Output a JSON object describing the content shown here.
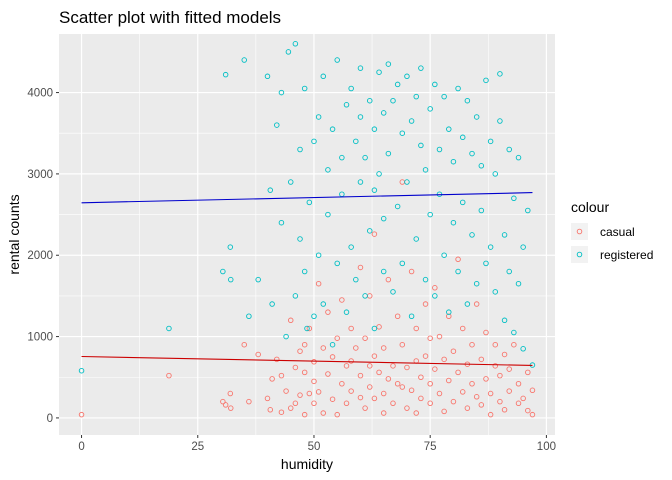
{
  "chart_data": {
    "type": "scatter",
    "title": "Scatter plot with fitted models",
    "xlabel": "humidity",
    "ylabel": "rental counts",
    "xlim": [
      -4.85,
      101.85
    ],
    "ylim": [
      -210,
      4720
    ],
    "x_ticks": [
      0,
      25,
      50,
      75,
      100
    ],
    "y_ticks": [
      0,
      1000,
      2000,
      3000,
      4000
    ],
    "x_tick_labels": [
      "0",
      "25",
      "50",
      "75",
      "100"
    ],
    "y_tick_labels": [
      "0",
      "1000",
      "2000",
      "3000",
      "4000"
    ],
    "grid": true,
    "legend_position": "right",
    "legend_title": "colour",
    "series": [
      {
        "name": "casual",
        "color": "#F8766D",
        "points": [
          [
            0,
            40
          ],
          [
            18.8,
            520
          ],
          [
            30.4,
            200
          ],
          [
            31,
            160
          ],
          [
            32,
            300
          ],
          [
            32.1,
            120
          ],
          [
            35,
            900
          ],
          [
            36,
            200
          ],
          [
            38,
            780
          ],
          [
            40,
            240
          ],
          [
            40.6,
            100
          ],
          [
            41,
            480
          ],
          [
            42,
            720
          ],
          [
            43,
            520
          ],
          [
            43,
            70
          ],
          [
            44,
            330
          ],
          [
            45,
            120
          ],
          [
            45,
            1200
          ],
          [
            46,
            620
          ],
          [
            46,
            180
          ],
          [
            47,
            820
          ],
          [
            47,
            280
          ],
          [
            48,
            900
          ],
          [
            48,
            40
          ],
          [
            48,
            560
          ],
          [
            49,
            300
          ],
          [
            49,
            1100
          ],
          [
            50,
            450
          ],
          [
            50,
            180
          ],
          [
            50,
            690
          ],
          [
            51,
            1650
          ],
          [
            51,
            320
          ],
          [
            52,
            860
          ],
          [
            52,
            60
          ],
          [
            53,
            540
          ],
          [
            53,
            1300
          ],
          [
            54,
            230
          ],
          [
            54,
            750
          ],
          [
            55,
            40
          ],
          [
            55,
            980
          ],
          [
            56,
            420
          ],
          [
            56,
            1450
          ],
          [
            57,
            640
          ],
          [
            57,
            180
          ],
          [
            58,
            1100
          ],
          [
            58,
            330
          ],
          [
            58,
            700
          ],
          [
            59,
            860
          ],
          [
            60,
            250
          ],
          [
            60,
            1850
          ],
          [
            60,
            520
          ],
          [
            61,
            120
          ],
          [
            61,
            980
          ],
          [
            62,
            640
          ],
          [
            62,
            380
          ],
          [
            62,
            1500
          ],
          [
            63,
            760
          ],
          [
            63,
            240
          ],
          [
            63,
            2260
          ],
          [
            64,
            560
          ],
          [
            64,
            1120
          ],
          [
            65,
            300
          ],
          [
            65,
            860
          ],
          [
            65,
            60
          ],
          [
            66,
            1700
          ],
          [
            66,
            480
          ],
          [
            67,
            640
          ],
          [
            67,
            180
          ],
          [
            68,
            1250
          ],
          [
            68,
            420
          ],
          [
            69,
            900
          ],
          [
            69,
            380
          ],
          [
            69,
            2900
          ],
          [
            70,
            620
          ],
          [
            70,
            120
          ],
          [
            71,
            1800
          ],
          [
            71,
            340
          ],
          [
            72,
            700
          ],
          [
            72,
            1100
          ],
          [
            72,
            60
          ],
          [
            73,
            500
          ],
          [
            73,
            240
          ],
          [
            74,
            1400
          ],
          [
            74,
            760
          ],
          [
            75,
            420
          ],
          [
            75,
            980
          ],
          [
            75,
            180
          ],
          [
            76,
            1600
          ],
          [
            76,
            600
          ],
          [
            77,
            300
          ],
          [
            77,
            1000
          ],
          [
            78,
            720
          ],
          [
            78,
            80
          ],
          [
            79,
            460
          ],
          [
            79,
            1250
          ],
          [
            80,
            200
          ],
          [
            80,
            820
          ],
          [
            81,
            1950
          ],
          [
            81,
            560
          ],
          [
            82,
            320
          ],
          [
            82,
            1100
          ],
          [
            83,
            660
          ],
          [
            83,
            120
          ],
          [
            84,
            900
          ],
          [
            84,
            420
          ],
          [
            85,
            260
          ],
          [
            85,
            1400
          ],
          [
            86,
            720
          ],
          [
            86,
            160
          ],
          [
            87,
            480
          ],
          [
            87,
            1050
          ],
          [
            88,
            300
          ],
          [
            88,
            40
          ],
          [
            89,
            640
          ],
          [
            89,
            900
          ],
          [
            90,
            200
          ],
          [
            90,
            520
          ],
          [
            91,
            780
          ],
          [
            91,
            100
          ],
          [
            92,
            330
          ],
          [
            92,
            600
          ],
          [
            93,
            900
          ],
          [
            94,
            180
          ],
          [
            94,
            420
          ],
          [
            95,
            240
          ],
          [
            96,
            90
          ],
          [
            96,
            560
          ],
          [
            97,
            40
          ],
          [
            97,
            340
          ]
        ]
      },
      {
        "name": "registered",
        "color": "#00BFC4",
        "points": [
          [
            0,
            580
          ],
          [
            18.8,
            1100
          ],
          [
            30.4,
            1800
          ],
          [
            31,
            4220
          ],
          [
            32,
            2100
          ],
          [
            32.1,
            1700
          ],
          [
            35,
            4400
          ],
          [
            36,
            1250
          ],
          [
            38,
            1700
          ],
          [
            40,
            4200
          ],
          [
            40.6,
            2800
          ],
          [
            41,
            1400
          ],
          [
            42,
            3600
          ],
          [
            43,
            2400
          ],
          [
            43,
            4000
          ],
          [
            44,
            1000
          ],
          [
            44.5,
            4500
          ],
          [
            45,
            2900
          ],
          [
            46,
            1500
          ],
          [
            46,
            4600
          ],
          [
            47,
            2200
          ],
          [
            47,
            3300
          ],
          [
            48,
            1800
          ],
          [
            48,
            4050
          ],
          [
            48.5,
            1100
          ],
          [
            49,
            2650
          ],
          [
            50,
            3400
          ],
          [
            50,
            1250
          ],
          [
            51,
            3700
          ],
          [
            51,
            2000
          ],
          [
            52,
            4200
          ],
          [
            52,
            1400
          ],
          [
            53,
            2500
          ],
          [
            53,
            3050
          ],
          [
            54,
            900
          ],
          [
            54,
            3550
          ],
          [
            55,
            4400
          ],
          [
            55,
            1900
          ],
          [
            56,
            2750
          ],
          [
            56,
            3200
          ],
          [
            57,
            1300
          ],
          [
            57,
            3850
          ],
          [
            58,
            2100
          ],
          [
            58,
            4050
          ],
          [
            59,
            3400
          ],
          [
            59,
            1700
          ],
          [
            60,
            2900
          ],
          [
            60,
            3700
          ],
          [
            60,
            4300
          ],
          [
            61,
            1500
          ],
          [
            61,
            3200
          ],
          [
            62,
            2300
          ],
          [
            62,
            3900
          ],
          [
            63,
            1100
          ],
          [
            63,
            3550
          ],
          [
            63,
            2800
          ],
          [
            64,
            4250
          ],
          [
            64,
            3000
          ],
          [
            65,
            1800
          ],
          [
            65,
            3750
          ],
          [
            65,
            2450
          ],
          [
            66,
            4350
          ],
          [
            66,
            3250
          ],
          [
            67,
            1550
          ],
          [
            67,
            3900
          ],
          [
            68,
            2600
          ],
          [
            68,
            4100
          ],
          [
            69,
            3500
          ],
          [
            69,
            1900
          ],
          [
            70,
            4200
          ],
          [
            70,
            2900
          ],
          [
            71,
            3650
          ],
          [
            71,
            1250
          ],
          [
            72,
            3950
          ],
          [
            72,
            2200
          ],
          [
            73,
            4300
          ],
          [
            73,
            3350
          ],
          [
            74,
            1700
          ],
          [
            74,
            3050
          ],
          [
            75,
            3800
          ],
          [
            75,
            2500
          ],
          [
            76,
            4100
          ],
          [
            76,
            1500
          ],
          [
            77,
            3300
          ],
          [
            77,
            2750
          ],
          [
            78,
            3950
          ],
          [
            78,
            2000
          ],
          [
            79,
            3550
          ],
          [
            79,
            1300
          ],
          [
            80,
            3150
          ],
          [
            80,
            2400
          ],
          [
            81,
            4050
          ],
          [
            81,
            1800
          ],
          [
            82,
            3450
          ],
          [
            82,
            2650
          ],
          [
            83,
            3900
          ],
          [
            83,
            1400
          ],
          [
            84,
            3250
          ],
          [
            84,
            2250
          ],
          [
            85,
            3700
          ],
          [
            85,
            1650
          ],
          [
            86,
            3100
          ],
          [
            86,
            2550
          ],
          [
            87,
            4150
          ],
          [
            87,
            1900
          ],
          [
            88,
            3400
          ],
          [
            88,
            2100
          ],
          [
            89,
            3000
          ],
          [
            89,
            1550
          ],
          [
            90,
            4230
          ],
          [
            90,
            3650
          ],
          [
            91,
            2250
          ],
          [
            91,
            1200
          ],
          [
            92,
            3300
          ],
          [
            92,
            1800
          ],
          [
            93,
            2700
          ],
          [
            93,
            1050
          ],
          [
            94,
            3200
          ],
          [
            94,
            1650
          ],
          [
            95,
            2100
          ],
          [
            95,
            850
          ],
          [
            96,
            2550
          ],
          [
            97,
            650
          ]
        ]
      }
    ],
    "fitted_lines": [
      {
        "name": "casual",
        "color": "#CC0000",
        "x": [
          0,
          97
        ],
        "y": [
          755,
          645
        ]
      },
      {
        "name": "registered",
        "color": "#0000CC",
        "x": [
          0,
          97
        ],
        "y": [
          2645,
          2770
        ]
      }
    ]
  }
}
